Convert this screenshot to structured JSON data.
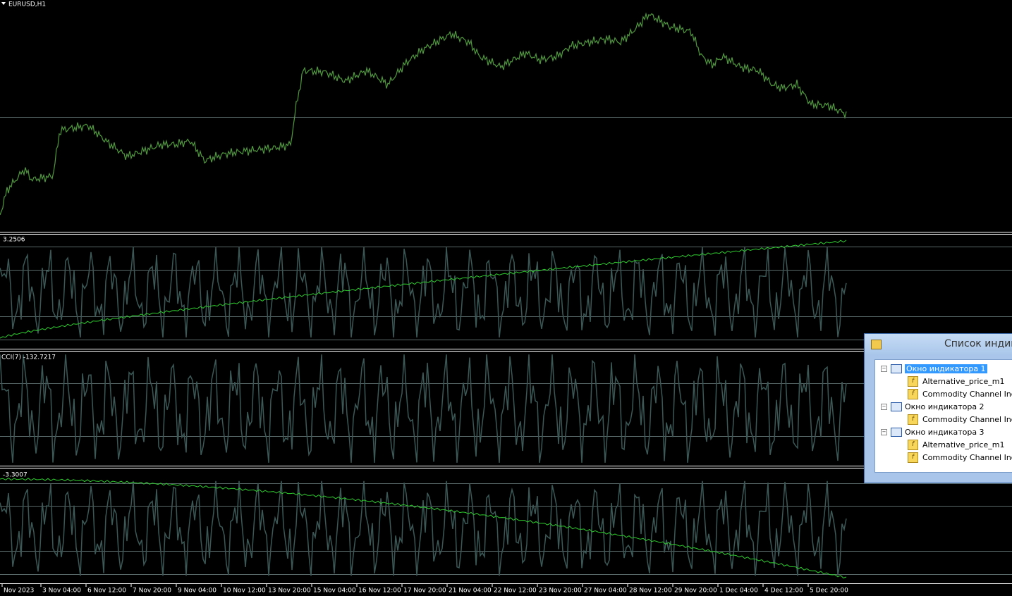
{
  "window_title": "EURUSD,H1",
  "panels": [
    {
      "label": "3.2506"
    },
    {
      "label": "CCI(7) -132.7217"
    },
    {
      "label": "-3.3007"
    }
  ],
  "time_axis": [
    "Nov 2023",
    "3 Nov 04:00",
    "6 Nov 12:00",
    "7 Nov 20:00",
    "9 Nov 04:00",
    "10 Nov 12:00",
    "13 Nov 20:00",
    "15 Nov 04:00",
    "16 Nov 12:00",
    "17 Nov 20:00",
    "21 Nov 04:00",
    "22 Nov 12:00",
    "23 Nov 20:00",
    "27 Nov 04:00",
    "28 Nov 12:00",
    "29 Nov 20:00",
    "1 Dec 04:00",
    "4 Dec 12:00",
    "5 Dec 20:00"
  ],
  "dialog": {
    "title": "Список индик",
    "tree": [
      {
        "label": "Окно индикатора 1",
        "children": [
          "Alternative_price_m1",
          "Commodity Channel Index"
        ]
      },
      {
        "label": "Окно индикатора 2",
        "children": [
          "Commodity Channel Index"
        ]
      },
      {
        "label": "Окно индикатора 3",
        "children": [
          "Alternative_price_m1",
          "Commodity Channel Index"
        ]
      }
    ]
  }
}
